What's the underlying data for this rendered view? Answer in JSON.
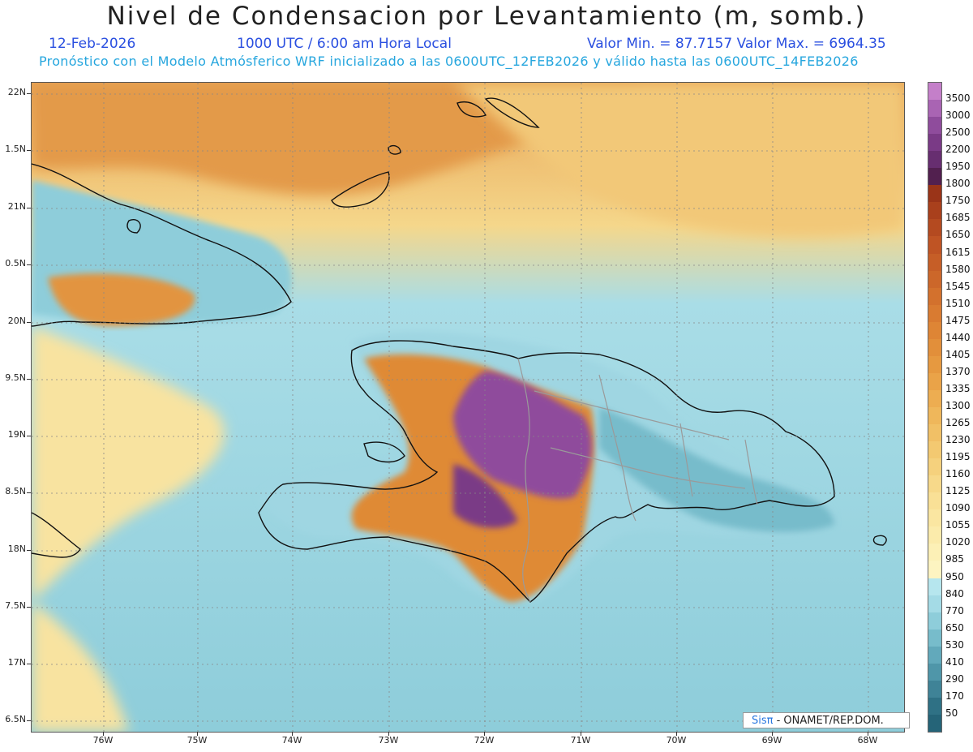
{
  "title": "Nivel de Condensacion por Levantamiento (m, somb.)",
  "date": "12-Feb-2026",
  "time": "1000 UTC / 6:00 am Hora Local",
  "minmax": "Valor Min. = 87.7157   Valor Max. = 6964.35",
  "subtitle": "Pronóstico con el Modelo Atmósferico WRF inicializado a las 0600UTC_12FEB2026 y válido hasta las  0600UTC_14FEB2026",
  "credit": {
    "sis": "Sis",
    "pi": "π",
    "rest": " - ONAMET/REP.DOM."
  },
  "lat_labels": [
    "22N",
    "1.5N",
    "21N",
    "0.5N",
    "20N",
    "9.5N",
    "19N",
    "8.5N",
    "18N",
    "7.5N",
    "17N",
    "6.5N"
  ],
  "lon_labels": [
    "76W",
    "75W",
    "74W",
    "73W",
    "72W",
    "71W",
    "70W",
    "69W",
    "68W"
  ],
  "legend": {
    "labels": [
      "3500",
      "3000",
      "2500",
      "2200",
      "1950",
      "1800",
      "1750",
      "1685",
      "1650",
      "1615",
      "1580",
      "1545",
      "1510",
      "1475",
      "1440",
      "1405",
      "1370",
      "1335",
      "1300",
      "1265",
      "1230",
      "1195",
      "1160",
      "1125",
      "1090",
      "1055",
      "1020",
      "985",
      "950",
      "840",
      "770",
      "650",
      "530",
      "410",
      "290",
      "170",
      "50"
    ],
    "colors": [
      "#c47fc9",
      "#a964b3",
      "#8f4c9c",
      "#7a3a86",
      "#672e70",
      "#52204f",
      "#9a3418",
      "#a9401c",
      "#b44a20",
      "#bf5424",
      "#c65e27",
      "#cc672a",
      "#d3712d",
      "#d97b31",
      "#de8535",
      "#e28f3a",
      "#e69940",
      "#eaa348",
      "#edad51",
      "#efb75b",
      "#f1c066",
      "#f3c971",
      "#f5d17d",
      "#f7d98a",
      "#f9e096",
      "#fae6a1",
      "#fbebab",
      "#fcf0b6",
      "#fdf4c1",
      "#b6e6ee",
      "#a4dbe6",
      "#8ecdda",
      "#77bccb",
      "#62a9bb",
      "#4f96a9",
      "#3f8397",
      "#2f7185"
    ],
    "min_color": "#256478"
  }
}
